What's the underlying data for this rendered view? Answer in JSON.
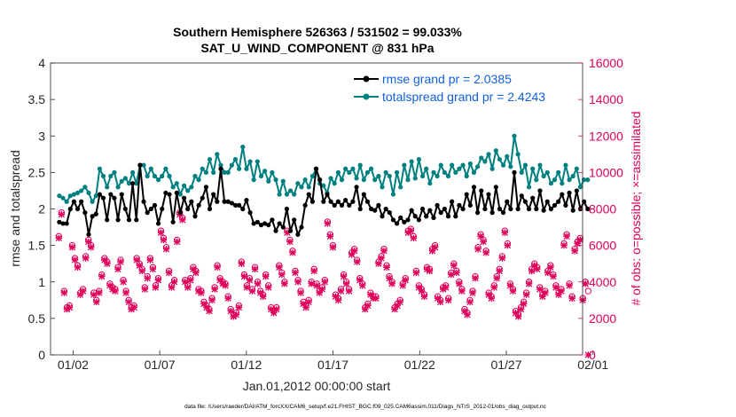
{
  "chart_data": {
    "type": "line",
    "title_line1": "Southern Hemisphere 526363 / 531502 = 99.033%",
    "title_line2": "SAT_U_WIND_COMPONENT @ 831 hPa",
    "xlabel": "Jan.01,2012 00:00:00 start",
    "ylabel_left": "rmse and totalspread",
    "ylabel_right": "# of obs: o=possible; ×=assimilated",
    "footer": "data file: /Users/raeder/DAI/ATM_forcXX/CAM6_setup/f.e21.FHIST_BGC.f09_025.CAM6assim.011/Diags_NTrS_2012-01/obs_diag_output.nc",
    "x_range": [
      0.6,
      31.3
    ],
    "x_ticks": [
      1.9,
      6.9,
      11.9,
      16.9,
      21.9,
      26.9,
      31.9
    ],
    "x_tick_labels": [
      "01/02",
      "01/07",
      "01/12",
      "01/17",
      "01/22",
      "01/27",
      "02/01"
    ],
    "ylim_left": [
      0,
      4
    ],
    "yticks_left": [
      0,
      0.5,
      1,
      1.5,
      2,
      2.5,
      3,
      3.5,
      4
    ],
    "ytick_labels_left": [
      "0",
      "0.5",
      "1",
      "1.5",
      "2",
      "2.5",
      "3",
      "3.5",
      "4"
    ],
    "ylim_right": [
      0,
      16000
    ],
    "yticks_right": [
      0,
      2000,
      4000,
      6000,
      8000,
      10000,
      12000,
      14000,
      16000
    ],
    "ytick_labels_right": [
      "0",
      "2000",
      "4000",
      "6000",
      "8000",
      "10000",
      "12000",
      "14000",
      "16000"
    ],
    "series": [
      {
        "name": "rmse grand pr = 2.0385",
        "color": "#000000",
        "values": [
          1.82,
          1.8,
          1.8,
          2.0,
          2.1,
          2.0,
          2.1,
          1.95,
          1.65,
          1.9,
          1.93,
          2.2,
          2.15,
          1.85,
          2.2,
          2.15,
          1.85,
          2.2,
          2.0,
          1.85,
          2.35,
          1.85,
          2.6,
          2.1,
          1.95,
          2.0,
          2.05,
          1.8,
          2.0,
          2.22,
          2.2,
          1.82,
          2.22,
          1.95,
          2.15,
          2.0,
          2.1,
          1.9,
          2.05,
          2.15,
          2.3,
          2.0,
          2.2,
          2.1,
          2.55,
          2.1,
          2.1,
          2.08,
          2.05,
          2.05,
          2.0,
          2.12,
          1.95,
          1.8,
          1.82,
          1.78,
          1.8,
          1.78,
          1.85,
          1.7,
          1.8,
          1.75,
          2.0,
          1.7,
          1.85,
          1.65,
          1.75,
          2.05,
          2.2,
          2.1,
          2.55,
          2.4,
          2.1,
          2.2,
          2.1,
          2.05,
          2.1,
          2.05,
          2.12,
          2.05,
          2.1,
          2.3,
          2.0,
          2.2,
          2.1,
          2.0,
          1.98,
          2.05,
          1.9,
          2.0,
          1.95,
          1.85,
          1.8,
          1.88,
          1.82,
          1.85,
          1.98,
          1.9,
          1.85,
          2.0,
          1.9,
          1.98,
          1.88,
          2.05,
          1.95,
          2.0,
          1.9,
          2.1,
          1.9,
          2.05,
          2.0,
          2.2,
          2.05,
          2.3,
          1.95,
          2.25,
          2.0,
          2.2,
          1.95,
          2.3,
          2.0,
          1.95,
          2.1,
          2.0,
          2.5,
          2.0,
          2.18,
          2.1,
          2.0,
          2.15,
          2.0,
          2.25,
          1.98,
          2.1,
          2.0,
          2.05,
          2.1,
          2.2,
          2.05,
          2.22,
          1.98,
          2.25,
          2.0,
          2.1,
          2.0
        ]
      },
      {
        "name": "totalspread grand pr = 2.4243",
        "color": "#008080",
        "values": [
          2.18,
          2.15,
          2.1,
          2.18,
          2.2,
          2.22,
          2.25,
          2.3,
          2.22,
          2.1,
          2.18,
          2.55,
          2.45,
          2.3,
          2.45,
          2.5,
          2.3,
          2.38,
          2.42,
          2.35,
          2.5,
          2.35,
          2.6,
          2.6,
          2.45,
          2.55,
          2.45,
          2.4,
          2.45,
          2.55,
          2.45,
          2.3,
          2.35,
          2.2,
          2.32,
          2.25,
          2.3,
          2.45,
          2.4,
          2.55,
          2.5,
          2.68,
          2.5,
          2.75,
          2.6,
          2.5,
          2.5,
          2.6,
          2.68,
          2.55,
          2.85,
          2.55,
          2.65,
          2.4,
          2.65,
          2.45,
          2.52,
          2.38,
          2.5,
          2.4,
          2.2,
          2.38,
          2.2,
          2.25,
          2.2,
          2.35,
          2.3,
          2.4,
          2.3,
          2.45,
          2.55,
          2.35,
          2.32,
          2.22,
          2.42,
          2.35,
          2.5,
          2.4,
          2.55,
          2.5,
          2.55,
          2.42,
          2.6,
          2.4,
          2.5,
          2.55,
          2.4,
          2.45,
          2.3,
          2.5,
          2.45,
          2.2,
          2.5,
          2.3,
          2.6,
          2.4,
          2.65,
          2.42,
          2.68,
          2.45,
          2.55,
          2.35,
          2.5,
          2.45,
          2.6,
          2.5,
          2.45,
          2.6,
          2.5,
          2.55,
          2.6,
          2.45,
          2.62,
          2.5,
          2.58,
          2.7,
          2.65,
          2.75,
          2.55,
          2.8,
          2.68,
          2.6,
          2.72,
          2.58,
          3.0,
          2.75,
          2.5,
          2.6,
          2.3,
          2.55,
          2.4,
          2.6,
          2.45,
          2.5,
          2.35,
          2.4,
          2.5,
          2.35,
          2.6,
          2.4,
          2.45,
          2.55,
          2.3,
          2.4,
          2.4
        ]
      },
      {
        "name": "# obs possible",
        "color": "#e0005a",
        "values": [
          6500,
          7800,
          3500,
          2600,
          2700,
          6000,
          5300,
          4900,
          3400,
          3600,
          5400,
          6300,
          6000,
          3400,
          3000,
          3500,
          4400,
          5300,
          5100,
          3900,
          3700,
          3600,
          4800,
          5200,
          4100,
          3500,
          3000,
          2600,
          2700,
          5300,
          5000,
          4700,
          3700,
          4300,
          5300,
          4800,
          3800,
          4200,
          6800,
          6400,
          5900,
          4600,
          3800,
          4100,
          6300,
          7800,
          7500,
          4100,
          3800,
          4200,
          4800,
          4600,
          3600,
          3500,
          2900,
          2700,
          2500,
          3100,
          3700,
          4900,
          4200,
          4000,
          3900,
          3200,
          2500,
          2200,
          2300,
          2700,
          5100,
          4400,
          3800,
          4200,
          3600,
          4800,
          4000,
          3500,
          3300,
          4400,
          3800,
          2600,
          2400,
          2600,
          4900,
          4500,
          4000,
          6800,
          6300,
          5700,
          4600,
          4100,
          3500,
          2900,
          2700,
          3000,
          4000,
          4700,
          3900,
          3500,
          3700,
          4100,
          7300,
          6600,
          6000,
          3300,
          3100,
          3600,
          4400,
          4000,
          3600,
          5600,
          5800,
          5200,
          4200,
          3900,
          2600,
          2800,
          3400,
          3200,
          3200,
          5100,
          5400,
          5800,
          4900,
          4300,
          4000,
          2600,
          2800,
          3000,
          3900,
          4200,
          6800,
          6900,
          6500,
          4600,
          3800,
          3600,
          3300,
          4800,
          4700,
          5800,
          6000,
          3200,
          3000,
          3700,
          3800,
          3100,
          4500,
          5000,
          4600,
          4000,
          3600,
          2500,
          2300,
          3000,
          3500,
          4300,
          5900,
          6600,
          6300,
          5700,
          3400,
          3200,
          3800,
          4300,
          4700,
          5400,
          6800,
          6100,
          3900,
          3600,
          2400,
          2200,
          2600,
          2900,
          3400,
          4000,
          4700,
          5000,
          4800,
          3700,
          3300,
          3500,
          4600,
          4900,
          4400,
          3800,
          3400,
          3600,
          6100,
          6600,
          3900,
          3200,
          5800,
          6200,
          6400,
          3100,
          4000,
          3500
        ]
      },
      {
        "name": "# obs assimilated",
        "color": "#e0005a",
        "values": [
          6400,
          7700,
          3400,
          2500,
          2600,
          5900,
          5200,
          4800,
          3300,
          3500,
          5300,
          6200,
          5900,
          3300,
          2900,
          3400,
          4300,
          5200,
          5000,
          3800,
          3600,
          3500,
          4700,
          5100,
          4000,
          3400,
          2900,
          2500,
          2600,
          5200,
          4900,
          4600,
          3600,
          4200,
          5200,
          4700,
          3700,
          4100,
          6700,
          6300,
          5800,
          4500,
          3700,
          4000,
          6200,
          7700,
          7400,
          4000,
          3700,
          4100,
          4700,
          4500,
          3500,
          3400,
          2800,
          2600,
          2400,
          3000,
          3600,
          4800,
          4100,
          3900,
          3800,
          3100,
          2400,
          2100,
          2200,
          2600,
          5000,
          4300,
          3700,
          4100,
          3500,
          4700,
          3900,
          3400,
          3200,
          4300,
          3700,
          2500,
          2300,
          2500,
          4800,
          4400,
          3900,
          6700,
          6200,
          5600,
          4500,
          4000,
          3400,
          2800,
          2600,
          2900,
          3900,
          4600,
          3800,
          3400,
          3600,
          4000,
          7200,
          6500,
          5900,
          3200,
          3000,
          3500,
          4300,
          3900,
          3500,
          5500,
          5700,
          5100,
          4100,
          3800,
          2500,
          2700,
          3300,
          3100,
          3100,
          5000,
          5300,
          5700,
          4800,
          4200,
          3900,
          2500,
          2700,
          2900,
          3800,
          4100,
          6700,
          6800,
          6400,
          4500,
          3700,
          3500,
          3200,
          4700,
          4600,
          5700,
          5900,
          3100,
          2900,
          3600,
          3700,
          3000,
          4400,
          4900,
          4500,
          3900,
          3500,
          2400,
          2200,
          2900,
          3400,
          4200,
          5800,
          6500,
          6200,
          5600,
          3300,
          3100,
          3700,
          4200,
          4600,
          5300,
          6700,
          6000,
          3800,
          3500,
          2300,
          2100,
          2500,
          2800,
          3300,
          3900,
          4600,
          4900,
          4700,
          3600,
          3200,
          3400,
          4500,
          4800,
          4300,
          3700,
          3300,
          3500,
          6000,
          6500,
          3800,
          3100,
          5700,
          6100,
          6300,
          3000,
          3900,
          0
        ]
      }
    ],
    "legend": [
      {
        "label": "rmse grand pr = 2.0385",
        "color": "#000000",
        "text_color": "#1060e0"
      },
      {
        "label": "totalspread grand pr = 2.4243",
        "color": "#008080",
        "text_color": "#1060e0"
      }
    ],
    "legend_placement": "top-right",
    "grid": false
  }
}
